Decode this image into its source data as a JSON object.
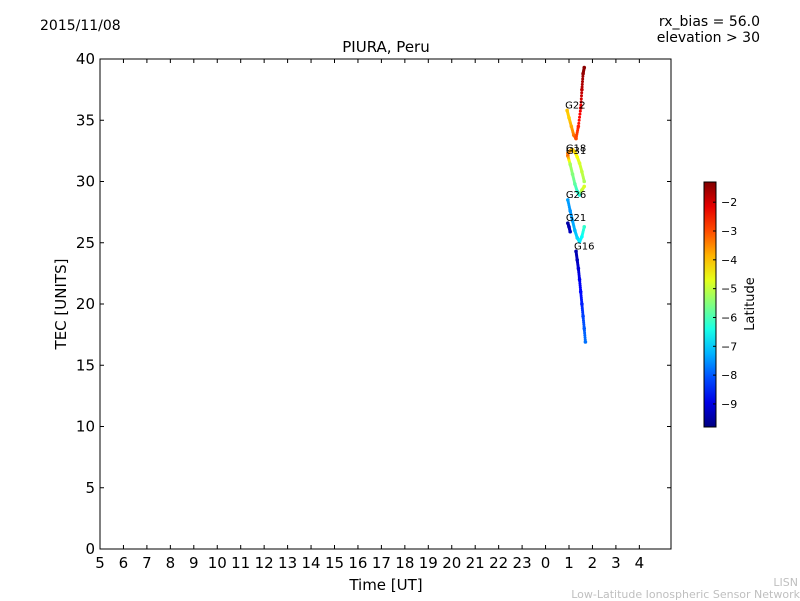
{
  "header": {
    "date": "2015/11/08",
    "rx_bias": "rx_bias = 56.0",
    "elevation": "elevation > 30"
  },
  "footer": {
    "line1": "LISN",
    "line2": "Low-Latitude Ionospheric Sensor Network"
  },
  "chart_data": {
    "type": "scatter",
    "title": "PIURA, Peru",
    "xlabel": "Time [UT]",
    "ylabel": "TEC [UNITS]",
    "xticks": [
      "5",
      "6",
      "7",
      "8",
      "9",
      "10",
      "11",
      "12",
      "13",
      "14",
      "15",
      "16",
      "17",
      "18",
      "19",
      "20",
      "21",
      "22",
      "23",
      "0",
      "1",
      "2",
      "3",
      "4"
    ],
    "ylim": [
      0,
      40
    ],
    "yticks": [
      0,
      5,
      10,
      15,
      20,
      25,
      30,
      35,
      40
    ],
    "colorbar": {
      "label": "Latitude",
      "range": [
        -9.8,
        -1.3
      ],
      "ticks": [
        -2,
        -3,
        -4,
        -5,
        -6,
        -7,
        -8,
        -9
      ],
      "colormap": "jet"
    },
    "grid": false,
    "series": [
      {
        "name": "G22",
        "x": [
          0.92,
          1.0,
          1.1,
          1.2,
          1.3,
          1.4,
          1.5,
          1.55,
          1.6,
          1.65
        ],
        "y": [
          35.8,
          35.2,
          34.5,
          33.8,
          33.5,
          34.5,
          36.0,
          37.5,
          38.8,
          39.3
        ],
        "lat": [
          -4.0,
          -4.1,
          -3.8,
          -3.4,
          -3.0,
          -2.6,
          -2.2,
          -1.8,
          -1.5,
          -1.4
        ]
      },
      {
        "name": "G18",
        "x": [
          0.95,
          1.05,
          1.15,
          1.25,
          1.35,
          1.45,
          1.55,
          1.65
        ],
        "y": [
          32.3,
          32.5,
          32.6,
          32.4,
          32.0,
          31.5,
          30.8,
          30.0
        ],
        "lat": [
          -3.4,
          -3.6,
          -4.0,
          -4.2,
          -4.5,
          -4.8,
          -5.0,
          -5.2
        ]
      },
      {
        "name": "G31",
        "x": [
          0.95,
          1.05,
          1.15,
          1.25,
          1.35,
          1.45,
          1.55,
          1.65
        ],
        "y": [
          32.1,
          31.4,
          30.6,
          29.8,
          29.2,
          28.9,
          29.3,
          29.6
        ],
        "lat": [
          -3.3,
          -5.2,
          -5.5,
          -5.8,
          -6.2,
          -6.5,
          -5.0,
          -4.8
        ]
      },
      {
        "name": "G26",
        "x": [
          0.95,
          1.05,
          1.15,
          1.25,
          1.35,
          1.45,
          1.55,
          1.65
        ],
        "y": [
          28.5,
          27.6,
          26.8,
          26.0,
          25.4,
          25.1,
          25.5,
          26.3
        ],
        "lat": [
          -7.4,
          -7.5,
          -7.4,
          -7.2,
          -7.0,
          -6.8,
          -6.6,
          -6.2
        ]
      },
      {
        "name": "G21",
        "x": [
          0.95,
          1.0,
          1.05
        ],
        "y": [
          26.6,
          26.3,
          25.9
        ],
        "lat": [
          -9.5,
          -9.4,
          -9.3
        ]
      },
      {
        "name": "G16",
        "x": [
          1.3,
          1.35,
          1.4,
          1.45,
          1.5,
          1.55,
          1.6,
          1.65,
          1.7
        ],
        "y": [
          24.3,
          23.6,
          22.9,
          22.0,
          21.0,
          20.0,
          19.0,
          18.0,
          16.9
        ],
        "lat": [
          -9.4,
          -9.3,
          -9.1,
          -8.9,
          -8.7,
          -8.5,
          -8.2,
          -8.0,
          -7.8
        ]
      }
    ]
  }
}
